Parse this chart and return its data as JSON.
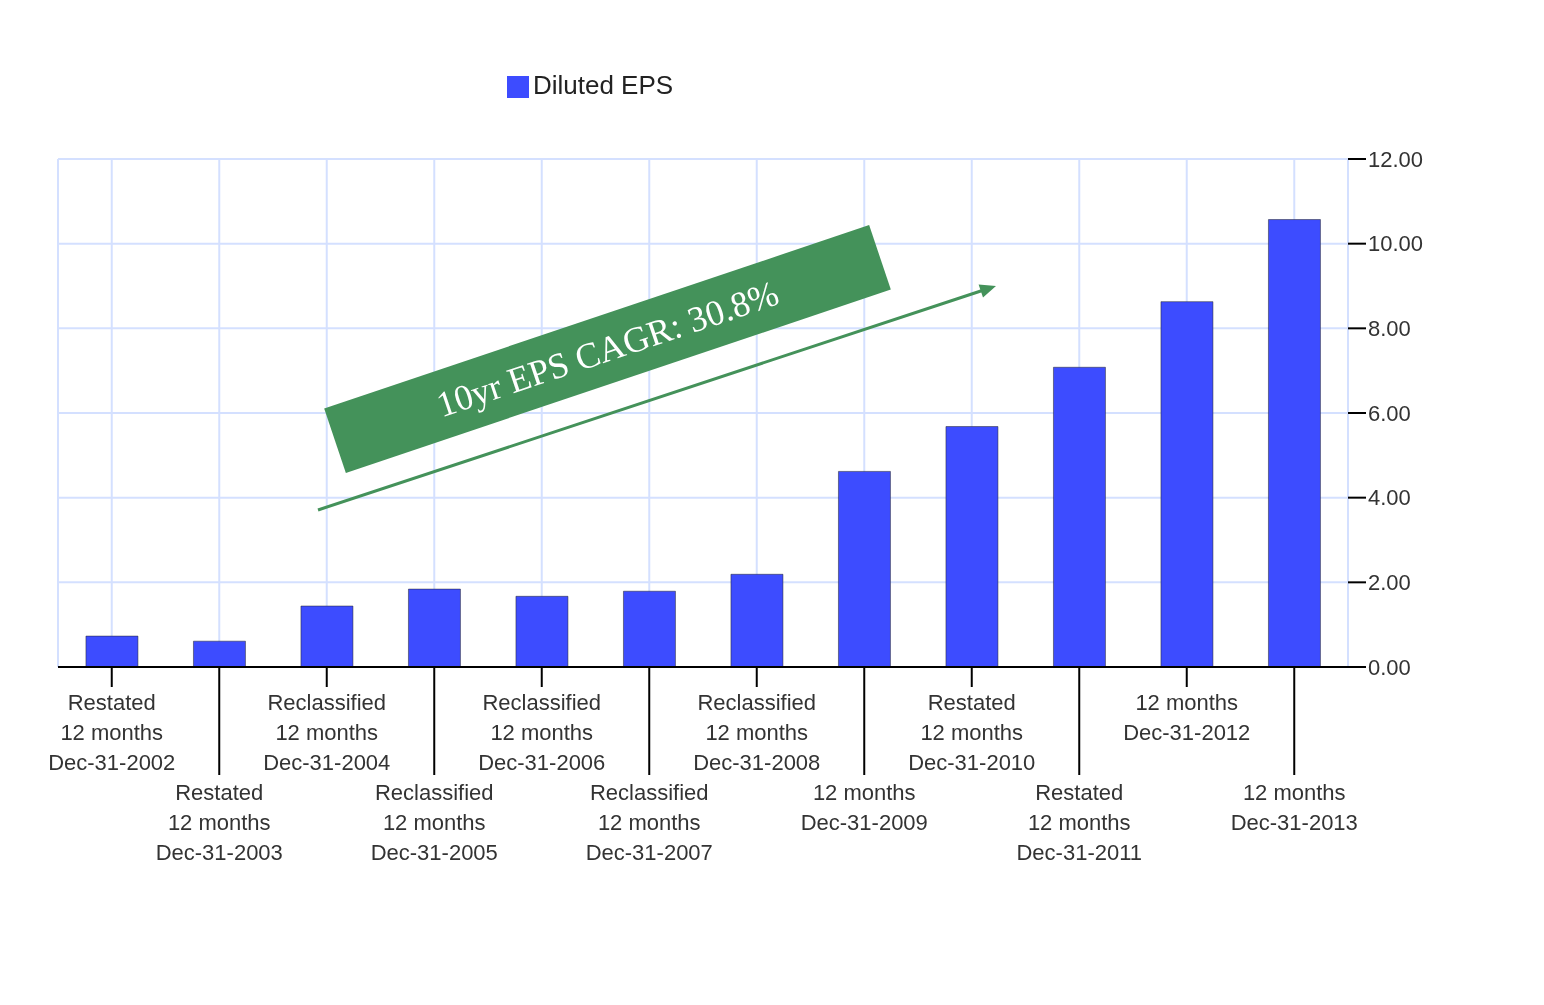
{
  "chart_data": {
    "type": "bar",
    "categories": [
      "Restated\n12 months\nDec-31-2002",
      "Restated\n12 months\nDec-31-2003",
      "Reclassified\n12 months\nDec-31-2004",
      "Reclassified\n12 months\nDec-31-2005",
      "Reclassified\n12 months\nDec-31-2006",
      "Reclassified\n12 months\nDec-31-2007",
      "Reclassified\n12 months\nDec-31-2008",
      "12 months\nDec-31-2009",
      "Restated\n12 months\nDec-31-2010",
      "Restated\n12 months\nDec-31-2011",
      "12 months\nDec-31-2012",
      "12 months\nDec-31-2013"
    ],
    "series": [
      {
        "name": "Diluted EPS",
        "color": "#3d4cff",
        "values": [
          0.73,
          0.61,
          1.44,
          1.84,
          1.67,
          1.79,
          2.19,
          4.62,
          5.68,
          7.08,
          8.63,
          10.57
        ]
      }
    ],
    "ylim": [
      0,
      12
    ],
    "yticks": [
      {
        "value": 0,
        "label": "0.00"
      },
      {
        "value": 2,
        "label": "2.00"
      },
      {
        "value": 4,
        "label": "4.00"
      },
      {
        "value": 6,
        "label": "6.00"
      },
      {
        "value": 8,
        "label": "8.00"
      },
      {
        "value": 10,
        "label": "10.00"
      },
      {
        "value": 12,
        "label": "12.00"
      }
    ],
    "grid": true,
    "legend": "top",
    "annotations": [
      "10yr EPS CAGR: 30.8%"
    ]
  }
}
